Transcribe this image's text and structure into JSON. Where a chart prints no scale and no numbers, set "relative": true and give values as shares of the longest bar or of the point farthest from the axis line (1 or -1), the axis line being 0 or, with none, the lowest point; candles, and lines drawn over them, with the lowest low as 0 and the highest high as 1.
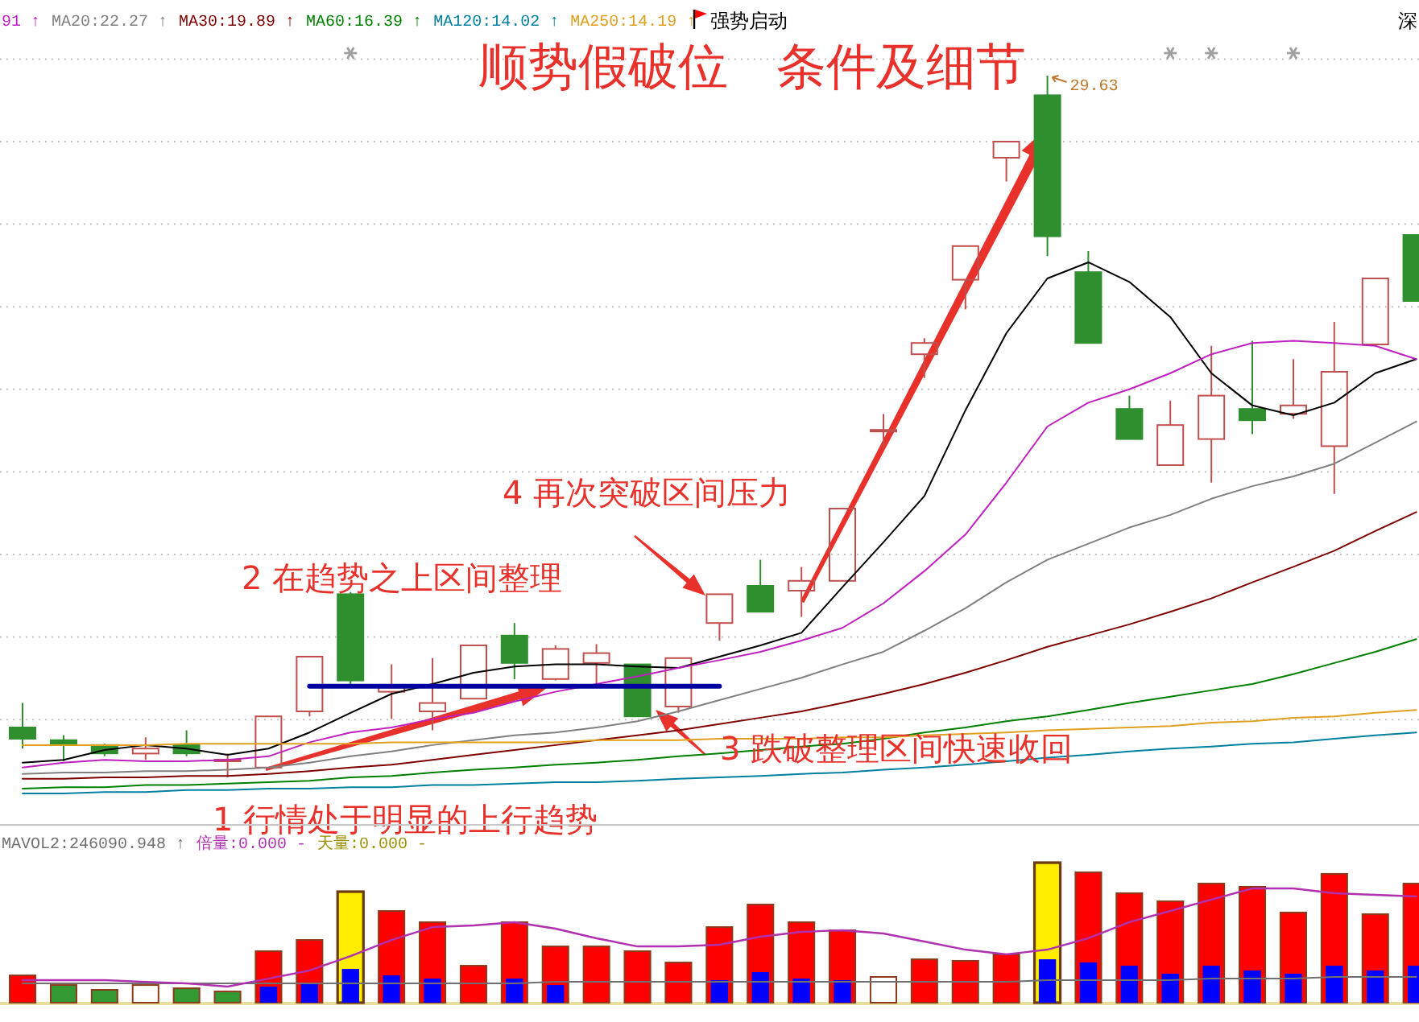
{
  "chart_data": [
    {
      "type": "candlestick",
      "title": "顺势假破位   条件及细节",
      "relative": true,
      "grid": "y",
      "legend": "top left",
      "categories": [
        null,
        null,
        null,
        null,
        null,
        null,
        null,
        null,
        null,
        null,
        null,
        null,
        null,
        null,
        null,
        null,
        null,
        null,
        null,
        null,
        null,
        null,
        null,
        null,
        null,
        null,
        null,
        null,
        null,
        null,
        null,
        null,
        null,
        null,
        null
      ],
      "ohlc": [
        [
          0.071,
          0.106,
          0.041,
          0.055
        ],
        [
          0.053,
          0.06,
          0.023,
          0.046
        ],
        [
          0.046,
          0.048,
          0.03,
          0.034
        ],
        [
          0.034,
          0.057,
          0.025,
          0.041
        ],
        [
          0.046,
          0.067,
          0.03,
          0.034
        ],
        [
          0.023,
          0.034,
          0,
          0.025
        ],
        [
          0.014,
          0.087,
          0.011,
          0.087
        ],
        [
          0.094,
          0.172,
          0.087,
          0.172
        ],
        [
          0.261,
          0.264,
          0.133,
          0.138
        ],
        [
          0.122,
          0.161,
          0.083,
          0.128
        ],
        [
          0.094,
          0.17,
          0.067,
          0.106
        ],
        [
          0.112,
          0.188,
          0.112,
          0.188
        ],
        [
          0.202,
          0.22,
          0.14,
          0.163
        ],
        [
          0.14,
          0.188,
          0.138,
          0.183
        ],
        [
          0.163,
          0.19,
          0.133,
          0.177
        ],
        [
          0.161,
          0.161,
          0.087,
          0.087
        ],
        [
          0.101,
          0.17,
          0.092,
          0.17
        ],
        [
          0.22,
          0.261,
          0.195,
          0.261
        ],
        [
          0.273,
          0.31,
          0.236,
          0.236
        ],
        [
          0.266,
          0.3,
          0.229,
          0.28
        ],
        [
          0.28,
          0.383,
          0.28,
          0.383
        ],
        [
          0.493,
          0.518,
          0.47,
          0.495
        ],
        [
          0.603,
          0.626,
          0.569,
          0.619
        ],
        [
          0.709,
          0.757,
          0.667,
          0.757
        ],
        [
          0.883,
          0.906,
          0.849,
          0.906
        ],
        [
          0.972,
          1,
          0.743,
          0.771
        ],
        [
          0.72,
          0.75,
          0.619,
          0.619
        ],
        [
          0.525,
          0.544,
          0.482,
          0.482
        ],
        [
          0.445,
          0.537,
          0.445,
          0.502
        ],
        [
          0.482,
          0.615,
          0.42,
          0.544
        ],
        [
          0.525,
          0.622,
          0.489,
          0.509
        ],
        [
          0.518,
          0.596,
          0.511,
          0.53
        ],
        [
          0.472,
          0.649,
          0.404,
          0.578
        ],
        [
          0.617,
          0.711,
          0.617,
          0.711
        ],
        [
          0.773,
          0.773,
          0.679,
          0.679
        ]
      ],
      "colors": [
        "#2f8f2f",
        "#2f8f2f",
        "#2f8f2f",
        "#c0504d",
        "#2f8f2f",
        "#c0504d",
        "#c0504d",
        "#c0504d",
        "#2f8f2f",
        "#c0504d",
        "#c0504d",
        "#c0504d",
        "#2f8f2f",
        "#c0504d",
        "#c0504d",
        "#2f8f2f",
        "#c0504d",
        "#c0504d",
        "#2f8f2f",
        "#c0504d",
        "#c0504d",
        "#c0504d",
        "#c0504d",
        "#c0504d",
        "#c0504d",
        "#2f8f2f",
        "#2f8f2f",
        "#2f8f2f",
        "#c0504d",
        "#c0504d",
        "#2f8f2f",
        "#c0504d",
        "#c0504d",
        "#c0504d",
        "#2f8f2f"
      ],
      "series": [
        {
          "type": "line",
          "color": "#000000",
          "values": [
            0.021,
            0.025,
            0.039,
            0.046,
            0.041,
            0.032,
            0.041,
            0.064,
            0.092,
            0.119,
            0.133,
            0.149,
            0.158,
            0.161,
            0.161,
            0.158,
            0.156,
            0.172,
            0.188,
            0.206,
            0.271,
            0.335,
            0.401,
            0.523,
            0.633,
            0.711,
            0.734,
            0.706,
            0.656,
            0.576,
            0.53,
            0.516,
            0.534,
            0.576,
            0.596
          ]
        },
        {
          "type": "line",
          "name": "91 ↑",
          "color": "#c020c0",
          "values": [
            0.014,
            0.021,
            0.025,
            0.023,
            0.023,
            0.025,
            0.03,
            0.05,
            0.064,
            0.071,
            0.083,
            0.092,
            0.108,
            0.122,
            0.133,
            0.144,
            0.156,
            0.167,
            0.179,
            0.195,
            0.213,
            0.248,
            0.294,
            0.346,
            0.42,
            0.5,
            0.534,
            0.553,
            0.576,
            0.603,
            0.619,
            0.622,
            0.619,
            0.615,
            0.596
          ]
        },
        {
          "type": "line",
          "name": "MA20:22.27 ↑",
          "color": "#808080",
          "values": [
            0.005,
            0.007,
            0.007,
            0.009,
            0.009,
            0.011,
            0.014,
            0.021,
            0.03,
            0.037,
            0.046,
            0.053,
            0.06,
            0.064,
            0.071,
            0.08,
            0.094,
            0.11,
            0.126,
            0.142,
            0.161,
            0.179,
            0.209,
            0.241,
            0.278,
            0.31,
            0.333,
            0.356,
            0.374,
            0.397,
            0.415,
            0.429,
            0.447,
            0.477,
            0.507
          ]
        },
        {
          "type": "line",
          "name": "MA30:19.89 ↑",
          "color": "#800000",
          "values": [
            -0.002,
            -0.002,
            0,
            0,
            0.002,
            0.002,
            0.005,
            0.009,
            0.014,
            0.018,
            0.025,
            0.032,
            0.039,
            0.046,
            0.053,
            0.06,
            0.067,
            0.076,
            0.085,
            0.094,
            0.106,
            0.119,
            0.133,
            0.149,
            0.167,
            0.186,
            0.202,
            0.218,
            0.236,
            0.255,
            0.278,
            0.3,
            0.323,
            0.351,
            0.378
          ]
        },
        {
          "type": "line",
          "name": "MA60:16.39 ↑",
          "color": "#008000",
          "values": [
            -0.016,
            -0.014,
            -0.014,
            -0.011,
            -0.011,
            -0.009,
            -0.007,
            -0.005,
            0,
            0.002,
            0.007,
            0.011,
            0.014,
            0.018,
            0.021,
            0.025,
            0.03,
            0.034,
            0.039,
            0.044,
            0.048,
            0.055,
            0.064,
            0.071,
            0.08,
            0.087,
            0.096,
            0.106,
            0.115,
            0.124,
            0.133,
            0.147,
            0.163,
            0.179,
            0.197
          ]
        },
        {
          "type": "line",
          "name": "MA120:14.02 ↑",
          "color": "#0080a0",
          "values": [
            -0.023,
            -0.023,
            -0.021,
            -0.021,
            -0.018,
            -0.018,
            -0.016,
            -0.016,
            -0.014,
            -0.014,
            -0.011,
            -0.011,
            -0.009,
            -0.007,
            -0.007,
            -0.005,
            -0.002,
            0,
            0.002,
            0.005,
            0.007,
            0.011,
            0.014,
            0.018,
            0.023,
            0.028,
            0.032,
            0.037,
            0.041,
            0.044,
            0.048,
            0.05,
            0.055,
            0.06,
            0.064
          ]
        },
        {
          "type": "line",
          "name": "MA250:14.19 ↑",
          "color": "#e0a020",
          "values": [
            0.046,
            0.046,
            0.046,
            0.046,
            0.048,
            0.048,
            0.048,
            0.048,
            0.048,
            0.05,
            0.05,
            0.05,
            0.05,
            0.05,
            0.053,
            0.053,
            0.053,
            0.055,
            0.055,
            0.055,
            0.057,
            0.057,
            0.06,
            0.062,
            0.064,
            0.067,
            0.069,
            0.071,
            0.073,
            0.078,
            0.08,
            0.085,
            0.087,
            0.092,
            0.096
          ]
        },
        {
          "type": "line",
          "color": "#0000a0",
          "values": [
            null,
            null,
            null,
            null,
            null,
            null,
            null,
            0.13,
            0.13,
            0.13,
            0.13,
            0.13,
            0.13,
            0.13,
            0.13,
            0.13,
            0.13,
            0.13,
            null,
            null,
            null,
            null,
            null,
            null,
            null,
            null,
            null,
            null,
            null,
            null,
            null,
            null,
            null,
            null,
            null
          ]
        }
      ],
      "annotations": [
        "强势启动",
        "深",
        "29.63",
        "4 再次突破区间压力",
        "2 在趋势之上区间整理",
        "3 跌破整理区间快速收回",
        "1 行情处于明显的上行趋势"
      ]
    },
    {
      "type": "bar",
      "relative": true,
      "legend": "top left",
      "categories": [
        null,
        null,
        null,
        null,
        null,
        null,
        null,
        null,
        null,
        null,
        null,
        null,
        null,
        null,
        null,
        null,
        null,
        null,
        null,
        null,
        null,
        null,
        null,
        null,
        null,
        null,
        null,
        null,
        null,
        null,
        null,
        null,
        null,
        null,
        null
      ],
      "series": [
        {
          "type": "line",
          "name": "MAVOL2:246090.948 ↑",
          "color": "#707070",
          "values": [
            0.138,
            0.138,
            0.138,
            0.138,
            0.138,
            0.138,
            0.138,
            0.138,
            0.138,
            0.138,
            0.138,
            0.138,
            0.138,
            0.149,
            0.149,
            0.149,
            0.149,
            0.149,
            0.149,
            0.149,
            0.149,
            0.149,
            0.149,
            0.149,
            0.149,
            0.161,
            0.161,
            0.161,
            0.161,
            0.172,
            0.172,
            0.172,
            0.184,
            0.184,
            0.184
          ]
        },
        {
          "type": "line",
          "name": "倍量:0.000 -",
          "color": "#b030b0",
          "values": [
            0.161,
            0.161,
            0.161,
            0.149,
            0.138,
            0.115,
            0.172,
            0.23,
            0.333,
            0.448,
            0.54,
            0.552,
            0.575,
            0.529,
            0.46,
            0.402,
            0.402,
            0.414,
            0.471,
            0.506,
            0.517,
            0.494,
            0.437,
            0.379,
            0.345,
            0.379,
            0.46,
            0.575,
            0.655,
            0.736,
            0.816,
            0.816,
            0.782,
            0.77,
            0.759
          ]
        },
        {
          "name": "天量:0.000 -",
          "color": "#ffee00",
          "values": [
            null,
            null,
            null,
            null,
            null,
            null,
            null,
            null,
            0.793,
            null,
            null,
            null,
            null,
            null,
            null,
            null,
            null,
            null,
            null,
            null,
            null,
            null,
            null,
            null,
            null,
            1,
            null,
            null,
            null,
            null,
            null,
            null,
            null,
            null,
            null
          ]
        },
        {
          "colors": [
            "#ff0000",
            "#339933",
            "#339933",
            "#ffffff",
            "#339933",
            "#339933",
            "#ff0000",
            "#ff0000",
            null,
            "#ff0000",
            "#ff0000",
            "#ff0000",
            "#ff0000",
            "#ff0000",
            "#ff0000",
            "#ff0000",
            "#ff0000",
            "#ff0000",
            "#ff0000",
            "#ff0000",
            "#ff0000",
            "#ffffff",
            "#ff0000",
            "#ff0000",
            "#ff0000",
            null,
            "#ff0000",
            "#ff0000",
            "#ff0000",
            "#ff0000",
            "#ff0000",
            "#ff0000",
            "#ff0000",
            "#ff0000",
            "#ff0000"
          ],
          "values": [
            0.195,
            0.126,
            0.092,
            0.126,
            0.103,
            0.08,
            0.368,
            0.448,
            null,
            0.655,
            0.575,
            0.264,
            0.575,
            0.402,
            0.402,
            0.368,
            0.287,
            0.54,
            0.701,
            0.575,
            0.517,
            0.184,
            0.31,
            0.299,
            0.345,
            null,
            0.931,
            0.782,
            0.724,
            0.851,
            0.828,
            0.644,
            0.92,
            0.632,
            0.851
          ]
        },
        {
          "color": "#0000ff",
          "values": [
            null,
            null,
            null,
            null,
            null,
            null,
            0.115,
            0.138,
            0.241,
            0.195,
            0.172,
            null,
            0.172,
            0.126,
            null,
            null,
            null,
            0.161,
            0.218,
            0.172,
            0.161,
            null,
            null,
            null,
            null,
            0.31,
            0.287,
            0.264,
            0.207,
            0.264,
            0.23,
            0.207,
            0.264,
            0.23,
            0.264
          ]
        }
      ]
    }
  ]
}
